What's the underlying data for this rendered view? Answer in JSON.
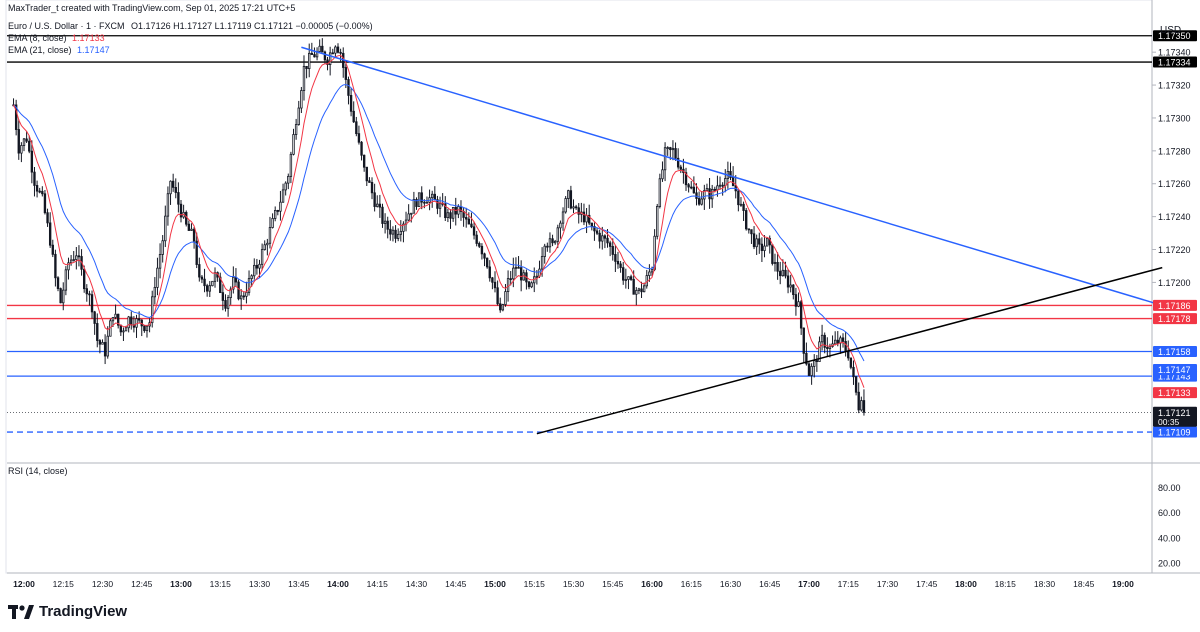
{
  "header": {
    "credit": "MaxTrader_t created with TradingView.com, Sep 01, 2025 17:21 UTC+5",
    "symbol": "Euro / U.S. Dollar · 1 · FXCM",
    "ohlc": "O1.17126 H1.17127 L1.17119 C1.17121 −0.00005 (−0.00%)",
    "ema_fast_label": "EMA (8, close)",
    "ema_fast_value": "1.17133",
    "ema_slow_label": "EMA (21, close)",
    "ema_slow_value": "1.17147",
    "currency": "USD",
    "rsi_label": "RSI (14, close)"
  },
  "branding": {
    "logo_text": "TradingView"
  },
  "colors": {
    "up": "#131722",
    "down": "#131722",
    "ema_fast": "#f23645",
    "ema_slow": "#2962ff",
    "resistance_red": "#f23645",
    "level_blue": "#2962ff",
    "trend_black": "#000000"
  },
  "chart_data": {
    "type": "candlestick",
    "symbol": "EURUSD",
    "timeframe": "1",
    "ylim": [
      1.17092,
      1.17362
    ],
    "y_ticks": [
      "1.17340",
      "1.17320",
      "1.17300",
      "1.17280",
      "1.17260",
      "1.17240",
      "1.17220",
      "1.17200"
    ],
    "x_ticks": [
      "12:00",
      "12:15",
      "12:30",
      "12:45",
      "13:00",
      "13:15",
      "13:30",
      "13:45",
      "14:00",
      "14:15",
      "14:30",
      "14:45",
      "15:00",
      "15:15",
      "15:30",
      "15:45",
      "16:00",
      "16:15",
      "16:30",
      "16:45",
      "17:00",
      "17:15",
      "17:30",
      "17:45",
      "18:00",
      "18:15",
      "18:30",
      "18:45",
      "19:00"
    ],
    "x_tick_minutes": [
      0,
      15,
      30,
      45,
      60,
      75,
      90,
      105,
      120,
      135,
      150,
      165,
      180,
      195,
      210,
      225,
      240,
      255,
      270,
      285,
      300,
      315,
      330,
      345,
      360,
      375,
      390,
      405,
      420
    ],
    "x_bold_ticks": [
      "12:00",
      "13:00",
      "14:00",
      "15:00",
      "16:00",
      "17:00",
      "18:00",
      "19:00"
    ],
    "last_bar_minute": 321,
    "price_anchors": [
      [
        -4,
        1.17308
      ],
      [
        -2,
        1.17282
      ],
      [
        1,
        1.17288
      ],
      [
        4,
        1.17262
      ],
      [
        7,
        1.1725
      ],
      [
        10,
        1.17226
      ],
      [
        12,
        1.17202
      ],
      [
        14,
        1.17188
      ],
      [
        17,
        1.17212
      ],
      [
        20,
        1.17218
      ],
      [
        23,
        1.172
      ],
      [
        26,
        1.17186
      ],
      [
        28,
        1.17165
      ],
      [
        31,
        1.17158
      ],
      [
        34,
        1.17182
      ],
      [
        37,
        1.1717
      ],
      [
        40,
        1.17178
      ],
      [
        43,
        1.17176
      ],
      [
        46,
        1.17174
      ],
      [
        48,
        1.17176
      ],
      [
        50,
        1.172
      ],
      [
        53,
        1.17226
      ],
      [
        56,
        1.17262
      ],
      [
        59,
        1.17248
      ],
      [
        62,
        1.17234
      ],
      [
        65,
        1.17226
      ],
      [
        67,
        1.172
      ],
      [
        70,
        1.17198
      ],
      [
        73,
        1.17204
      ],
      [
        77,
        1.17188
      ],
      [
        80,
        1.172
      ],
      [
        83,
        1.1719
      ],
      [
        86,
        1.172
      ],
      [
        89,
        1.1721
      ],
      [
        92,
        1.17222
      ],
      [
        95,
        1.17236
      ],
      [
        98,
        1.1725
      ],
      [
        101,
        1.17266
      ],
      [
        104,
        1.173
      ],
      [
        107,
        1.1733
      ],
      [
        110,
        1.17338
      ],
      [
        113,
        1.1734
      ],
      [
        116,
        1.17336
      ],
      [
        119,
        1.17346
      ],
      [
        121,
        1.1734
      ],
      [
        123,
        1.17322
      ],
      [
        126,
        1.17298
      ],
      [
        130,
        1.17268
      ],
      [
        134,
        1.1725
      ],
      [
        138,
        1.17234
      ],
      [
        142,
        1.1723
      ],
      [
        146,
        1.1724
      ],
      [
        150,
        1.1725
      ],
      [
        154,
        1.17252
      ],
      [
        158,
        1.17248
      ],
      [
        162,
        1.1724
      ],
      [
        166,
        1.17244
      ],
      [
        170,
        1.17234
      ],
      [
        174,
        1.17224
      ],
      [
        177,
        1.17212
      ],
      [
        180,
        1.17194
      ],
      [
        182,
        1.1718
      ],
      [
        185,
        1.172
      ],
      [
        188,
        1.1721
      ],
      [
        191,
        1.17202
      ],
      [
        193,
        1.17194
      ],
      [
        196,
        1.17204
      ],
      [
        199,
        1.17226
      ],
      [
        202,
        1.17222
      ],
      [
        205,
        1.1724
      ],
      [
        208,
        1.17252
      ],
      [
        211,
        1.17242
      ],
      [
        214,
        1.1724
      ],
      [
        217,
        1.17232
      ],
      [
        220,
        1.17228
      ],
      [
        223,
        1.17224
      ],
      [
        226,
        1.17216
      ],
      [
        229,
        1.17204
      ],
      [
        232,
        1.17198
      ],
      [
        235,
        1.17194
      ],
      [
        237,
        1.17198
      ],
      [
        240,
        1.1721
      ],
      [
        242,
        1.1725
      ],
      [
        245,
        1.17278
      ],
      [
        248,
        1.1728
      ],
      [
        251,
        1.1727
      ],
      [
        254,
        1.1726
      ],
      [
        257,
        1.1725
      ],
      [
        260,
        1.17254
      ],
      [
        263,
        1.17254
      ],
      [
        266,
        1.17262
      ],
      [
        269,
        1.17264
      ],
      [
        272,
        1.17256
      ],
      [
        275,
        1.1724
      ],
      [
        278,
        1.17228
      ],
      [
        281,
        1.1722
      ],
      [
        284,
        1.17224
      ],
      [
        287,
        1.1721
      ],
      [
        290,
        1.17204
      ],
      [
        293,
        1.17198
      ],
      [
        296,
        1.17185
      ],
      [
        298,
        1.1716
      ],
      [
        300,
        1.17145
      ],
      [
        302,
        1.1715
      ],
      [
        305,
        1.17165
      ],
      [
        308,
        1.1716
      ],
      [
        311,
        1.17164
      ],
      [
        313,
        1.17162
      ],
      [
        315,
        1.17157
      ],
      [
        317,
        1.1714
      ],
      [
        319,
        1.17125
      ],
      [
        320,
        1.17132
      ],
      [
        321,
        1.17121
      ]
    ],
    "ema_fast_value": 1.17133,
    "ema_slow_value": 1.17147,
    "horizontal_levels": [
      {
        "price": 1.1735,
        "label": "1.17350",
        "color": "#000000",
        "style": "solid"
      },
      {
        "price": 1.17334,
        "label": "1.17334",
        "color": "#000000",
        "style": "solid"
      },
      {
        "price": 1.17186,
        "label": "1.17186",
        "color": "#f23645",
        "style": "solid"
      },
      {
        "price": 1.17178,
        "label": "1.17178",
        "color": "#f23645",
        "style": "solid"
      },
      {
        "price": 1.17158,
        "label": "1.17158",
        "color": "#2962ff",
        "style": "solid"
      },
      {
        "price": 1.17143,
        "label": "1.17143",
        "color": "#2962ff",
        "style": "solid"
      },
      {
        "price": 1.17109,
        "label": "1.17109",
        "color": "#2962ff",
        "style": "dashed"
      }
    ],
    "trendlines": [
      {
        "color": "#2962ff",
        "from": [
          106,
          1.17343
        ],
        "to": [
          435,
          1.17186
        ]
      },
      {
        "color": "#000000",
        "from": [
          196,
          1.17108
        ],
        "to": [
          435,
          1.17209
        ]
      }
    ],
    "price_badges": [
      {
        "label": "1.17147",
        "color": "#2962ff",
        "price": 1.17147
      },
      {
        "label": "1.17133",
        "color": "#f23645",
        "price": 1.17133
      }
    ],
    "last_price": {
      "label": "1.17121",
      "countdown": "00:35",
      "price": 1.17121
    },
    "rsi_ticks": [
      "80.00",
      "60.00",
      "40.00",
      "20.00"
    ],
    "rsi_tick_values": [
      80,
      60,
      40,
      20
    ],
    "rsi_ylim": [
      12,
      94
    ]
  }
}
